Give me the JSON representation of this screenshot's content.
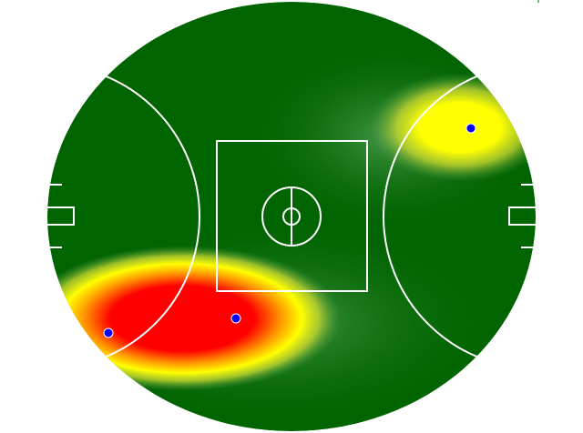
{
  "colors": {
    "field": "#006400",
    "lines": "#ffffff",
    "heat_low": "#4c9a4c",
    "heat_mid": "#ffff00",
    "heat_high": "#ff0000",
    "marker": "#0000ff"
  },
  "heatmap": {
    "type": "heatmap",
    "markers_shown": 3
  }
}
